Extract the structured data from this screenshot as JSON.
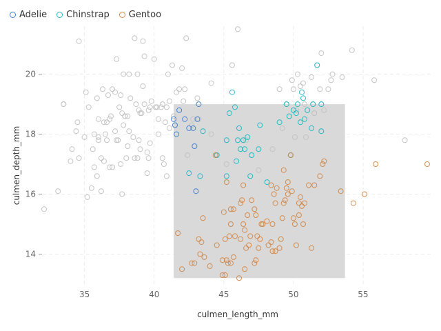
{
  "chart_data": {
    "type": "scatter",
    "xlabel": "culmen_length_mm",
    "ylabel": "culmen_depth_mm",
    "xlim": [
      32,
      60
    ],
    "ylim": [
      13,
      21.6
    ],
    "x_ticks": [
      35,
      40,
      45,
      50,
      55
    ],
    "y_ticks": [
      14,
      16,
      18,
      20
    ],
    "grid": true,
    "legend": "top-left",
    "selection": {
      "x": [
        41.4,
        53.7
      ],
      "y": [
        13.2,
        19.0
      ],
      "color": "#d9d9d9"
    },
    "unselected_color": "#c2c2c2",
    "series": [
      {
        "name": "Adelie",
        "color": "#3f7fd0",
        "points": [
          [
            41.4,
            18.5
          ],
          [
            41.5,
            18.3
          ],
          [
            41.6,
            18.0
          ],
          [
            42.2,
            18.5
          ],
          [
            42.8,
            18.2
          ],
          [
            42.9,
            17.6
          ],
          [
            43.1,
            18.5
          ],
          [
            43.2,
            19.0
          ],
          [
            43.0,
            16.1
          ],
          [
            42.5,
            18.2
          ],
          [
            41.8,
            18.8
          ]
        ]
      },
      {
        "name": "Chinstrap",
        "color": "#1cbac5",
        "points": [
          [
            42.5,
            16.7
          ],
          [
            43.3,
            16.6
          ],
          [
            43.5,
            18.1
          ],
          [
            45.2,
            16.6
          ],
          [
            45.4,
            18.7
          ],
          [
            45.6,
            19.4
          ],
          [
            45.8,
            18.9
          ],
          [
            46.1,
            18.2
          ],
          [
            46.0,
            17.8
          ],
          [
            46.5,
            17.5
          ],
          [
            46.4,
            17.8
          ],
          [
            46.7,
            17.9
          ],
          [
            46.9,
            16.6
          ],
          [
            47.0,
            17.3
          ],
          [
            47.5,
            17.5
          ],
          [
            47.6,
            18.3
          ],
          [
            48.1,
            16.4
          ],
          [
            49.0,
            18.4
          ],
          [
            49.5,
            19.0
          ],
          [
            49.7,
            18.6
          ],
          [
            50.0,
            18.8
          ],
          [
            50.2,
            18.7
          ],
          [
            50.3,
            19.0
          ],
          [
            50.5,
            18.4
          ],
          [
            50.7,
            19.2
          ],
          [
            50.8,
            18.5
          ],
          [
            51.0,
            18.8
          ],
          [
            51.3,
            18.2
          ],
          [
            51.4,
            19.0
          ],
          [
            51.7,
            20.3
          ],
          [
            52.0,
            18.1
          ],
          [
            52.0,
            19.0
          ],
          [
            50.6,
            19.4
          ],
          [
            49.8,
            17.3
          ],
          [
            45.2,
            17.8
          ],
          [
            46.2,
            17.5
          ],
          [
            45.9,
            17.1
          ],
          [
            44.5,
            17.3
          ]
        ]
      },
      {
        "name": "Gentoo",
        "color": "#d2884a",
        "points": [
          [
            41.7,
            14.7
          ],
          [
            42.0,
            13.5
          ],
          [
            42.7,
            13.7
          ],
          [
            42.9,
            13.7
          ],
          [
            43.2,
            14.5
          ],
          [
            43.3,
            14.0
          ],
          [
            43.4,
            14.4
          ],
          [
            43.5,
            15.2
          ],
          [
            43.6,
            13.9
          ],
          [
            44.0,
            13.6
          ],
          [
            44.4,
            17.3
          ],
          [
            44.5,
            14.3
          ],
          [
            44.9,
            13.8
          ],
          [
            45.0,
            15.4
          ],
          [
            45.1,
            14.5
          ],
          [
            45.2,
            13.8
          ],
          [
            45.3,
            13.7
          ],
          [
            45.4,
            14.6
          ],
          [
            45.5,
            13.7
          ],
          [
            45.5,
            15.0
          ],
          [
            45.7,
            13.9
          ],
          [
            45.8,
            14.6
          ],
          [
            46.1,
            13.2
          ],
          [
            46.2,
            14.5
          ],
          [
            46.3,
            15.8
          ],
          [
            46.4,
            15.0
          ],
          [
            46.5,
            13.5
          ],
          [
            46.6,
            14.2
          ],
          [
            46.7,
            15.3
          ],
          [
            46.8,
            14.3
          ],
          [
            46.9,
            14.6
          ],
          [
            47.0,
            15.8
          ],
          [
            47.2,
            13.7
          ],
          [
            47.3,
            15.3
          ],
          [
            47.4,
            14.6
          ],
          [
            47.5,
            14.2
          ],
          [
            47.6,
            14.5
          ],
          [
            47.8,
            15.0
          ],
          [
            48.1,
            15.1
          ],
          [
            48.2,
            14.3
          ],
          [
            48.4,
            14.4
          ],
          [
            48.5,
            14.1
          ],
          [
            48.6,
            16.0
          ],
          [
            48.7,
            15.7
          ],
          [
            48.8,
            16.2
          ],
          [
            49.0,
            14.2
          ],
          [
            49.1,
            14.5
          ],
          [
            49.2,
            15.2
          ],
          [
            49.3,
            15.7
          ],
          [
            49.4,
            15.8
          ],
          [
            49.5,
            16.2
          ],
          [
            49.6,
            16.0
          ],
          [
            49.8,
            17.3
          ],
          [
            49.9,
            16.1
          ],
          [
            50.0,
            15.2
          ],
          [
            50.1,
            15.0
          ],
          [
            50.2,
            14.3
          ],
          [
            50.4,
            15.3
          ],
          [
            50.5,
            15.9
          ],
          [
            50.7,
            15.0
          ],
          [
            50.8,
            15.7
          ],
          [
            51.1,
            16.3
          ],
          [
            51.3,
            14.2
          ],
          [
            51.5,
            16.3
          ],
          [
            52.1,
            17.0
          ],
          [
            52.2,
            17.1
          ],
          [
            53.4,
            16.1
          ],
          [
            54.3,
            15.7
          ],
          [
            55.9,
            17.0
          ],
          [
            55.1,
            16.0
          ],
          [
            59.6,
            17.0
          ],
          [
            45.2,
            16.4
          ],
          [
            46.4,
            16.3
          ],
          [
            47.3,
            13.8
          ],
          [
            48.7,
            14.1
          ],
          [
            49.6,
            16.4
          ],
          [
            50.4,
            15.7
          ],
          [
            44.9,
            13.3
          ],
          [
            45.1,
            13.3
          ],
          [
            47.7,
            15.0
          ],
          [
            48.5,
            15.0
          ],
          [
            45.5,
            15.5
          ],
          [
            46.2,
            15.7
          ],
          [
            47.2,
            15.5
          ],
          [
            48.4,
            16.3
          ],
          [
            49.3,
            16.8
          ],
          [
            50.6,
            15.6
          ],
          [
            51.9,
            16.6
          ],
          [
            46.5,
            14.8
          ],
          [
            45.7,
            15.5
          ]
        ]
      },
      {
        "name": "",
        "color": "#c2c2c2",
        "points": [
          [
            32.1,
            15.5
          ],
          [
            33.1,
            16.1
          ],
          [
            33.5,
            19.0
          ],
          [
            34.0,
            17.1
          ],
          [
            34.4,
            18.1
          ],
          [
            34.5,
            18.4
          ],
          [
            34.6,
            21.1
          ],
          [
            34.6,
            17.2
          ],
          [
            35.0,
            17.9
          ],
          [
            35.1,
            19.4
          ],
          [
            35.2,
            15.9
          ],
          [
            35.3,
            18.9
          ],
          [
            35.5,
            16.2
          ],
          [
            35.6,
            17.5
          ],
          [
            35.7,
            16.9
          ],
          [
            35.9,
            16.6
          ],
          [
            36.0,
            17.9
          ],
          [
            36.0,
            18.5
          ],
          [
            36.2,
            17.2
          ],
          [
            36.3,
            19.5
          ],
          [
            36.4,
            17.1
          ],
          [
            36.5,
            18.0
          ],
          [
            36.6,
            17.8
          ],
          [
            36.7,
            19.3
          ],
          [
            36.8,
            18.5
          ],
          [
            36.9,
            18.6
          ],
          [
            37.0,
            16.9
          ],
          [
            37.0,
            19.5
          ],
          [
            37.2,
            18.1
          ],
          [
            37.3,
            20.5
          ],
          [
            37.4,
            17.8
          ],
          [
            37.5,
            18.9
          ],
          [
            37.6,
            19.3
          ],
          [
            37.7,
            18.7
          ],
          [
            37.8,
            18.3
          ],
          [
            37.8,
            20.0
          ],
          [
            37.9,
            18.6
          ],
          [
            38.0,
            17.2
          ],
          [
            38.1,
            18.6
          ],
          [
            38.2,
            18.1
          ],
          [
            38.3,
            19.2
          ],
          [
            38.5,
            17.9
          ],
          [
            38.6,
            21.2
          ],
          [
            38.7,
            19.0
          ],
          [
            38.8,
            20.0
          ],
          [
            38.9,
            17.8
          ],
          [
            39.0,
            17.5
          ],
          [
            39.1,
            18.7
          ],
          [
            39.2,
            19.6
          ],
          [
            39.3,
            20.6
          ],
          [
            39.5,
            17.4
          ],
          [
            39.6,
            18.8
          ],
          [
            39.7,
            17.7
          ],
          [
            39.8,
            19.1
          ],
          [
            40.0,
            20.5
          ],
          [
            40.2,
            18.9
          ],
          [
            40.3,
            18.0
          ],
          [
            40.5,
            18.9
          ],
          [
            40.6,
            19.0
          ],
          [
            40.7,
            17.0
          ],
          [
            40.8,
            18.4
          ],
          [
            40.9,
            16.6
          ],
          [
            41.0,
            20.0
          ],
          [
            41.1,
            19.1
          ],
          [
            41.3,
            20.3
          ],
          [
            41.4,
            18.6
          ],
          [
            41.5,
            18.3
          ],
          [
            41.6,
            19.4
          ],
          [
            41.8,
            19.5
          ],
          [
            42.0,
            20.2
          ],
          [
            42.1,
            19.1
          ],
          [
            42.2,
            19.5
          ],
          [
            42.3,
            21.2
          ],
          [
            42.4,
            17.3
          ],
          [
            42.7,
            18.3
          ],
          [
            42.8,
            18.5
          ],
          [
            43.1,
            19.2
          ],
          [
            43.2,
            18.5
          ],
          [
            44.1,
            19.7
          ],
          [
            44.1,
            18.0
          ],
          [
            45.2,
            17.0
          ],
          [
            45.6,
            20.3
          ],
          [
            46.0,
            21.5
          ],
          [
            46.1,
            18.2
          ],
          [
            46.4,
            17.8
          ],
          [
            46.6,
            17.8
          ],
          [
            47.0,
            17.3
          ],
          [
            47.5,
            16.8
          ],
          [
            48.5,
            17.5
          ],
          [
            49.0,
            19.5
          ],
          [
            49.2,
            18.2
          ],
          [
            49.5,
            19.0
          ],
          [
            49.7,
            18.6
          ],
          [
            49.9,
            19.8
          ],
          [
            50.0,
            19.5
          ],
          [
            50.2,
            18.8
          ],
          [
            50.3,
            20.0
          ],
          [
            50.5,
            19.6
          ],
          [
            50.7,
            19.7
          ],
          [
            50.8,
            19.0
          ],
          [
            51.0,
            18.8
          ],
          [
            51.3,
            19.9
          ],
          [
            51.4,
            19.0
          ],
          [
            51.5,
            18.7
          ],
          [
            51.7,
            20.3
          ],
          [
            51.9,
            19.5
          ],
          [
            52.0,
            20.7
          ],
          [
            52.0,
            18.1
          ],
          [
            52.2,
            18.8
          ],
          [
            52.5,
            19.5
          ],
          [
            52.7,
            19.8
          ],
          [
            52.8,
            20.0
          ],
          [
            53.5,
            19.9
          ],
          [
            54.2,
            20.8
          ],
          [
            55.8,
            19.8
          ],
          [
            58.0,
            17.8
          ],
          [
            46.9,
            16.6
          ],
          [
            50.9,
            17.9
          ],
          [
            50.1,
            17.9
          ],
          [
            49.8,
            17.3
          ],
          [
            51.5,
            18.7
          ],
          [
            51.4,
            19.0
          ],
          [
            52.0,
            19.0
          ],
          [
            35.9,
            19.2
          ],
          [
            36.2,
            16.1
          ],
          [
            37.6,
            17.0
          ],
          [
            38.9,
            18.8
          ],
          [
            39.2,
            21.1
          ],
          [
            40.3,
            18.5
          ],
          [
            36.6,
            18.4
          ],
          [
            35.7,
            18.0
          ],
          [
            33.5,
            19.0
          ],
          [
            38.8,
            17.2
          ],
          [
            40.9,
            18.9
          ],
          [
            39.6,
            17.2
          ],
          [
            37.3,
            17.8
          ],
          [
            36.4,
            18.4
          ],
          [
            39.5,
            16.7
          ],
          [
            37.9,
            18.6
          ],
          [
            38.6,
            17.2
          ],
          [
            40.1,
            18.9
          ],
          [
            36.8,
            16.9
          ],
          [
            41.1,
            18.2
          ],
          [
            39.0,
            18.7
          ],
          [
            37.2,
            19.4
          ],
          [
            38.1,
            17.6
          ],
          [
            39.7,
            18.9
          ],
          [
            40.6,
            17.2
          ],
          [
            34.1,
            17.5
          ],
          [
            36.0,
            17.8
          ],
          [
            37.7,
            16.0
          ],
          [
            38.2,
            20.0
          ],
          [
            39.3,
            19.0
          ]
        ]
      }
    ]
  }
}
